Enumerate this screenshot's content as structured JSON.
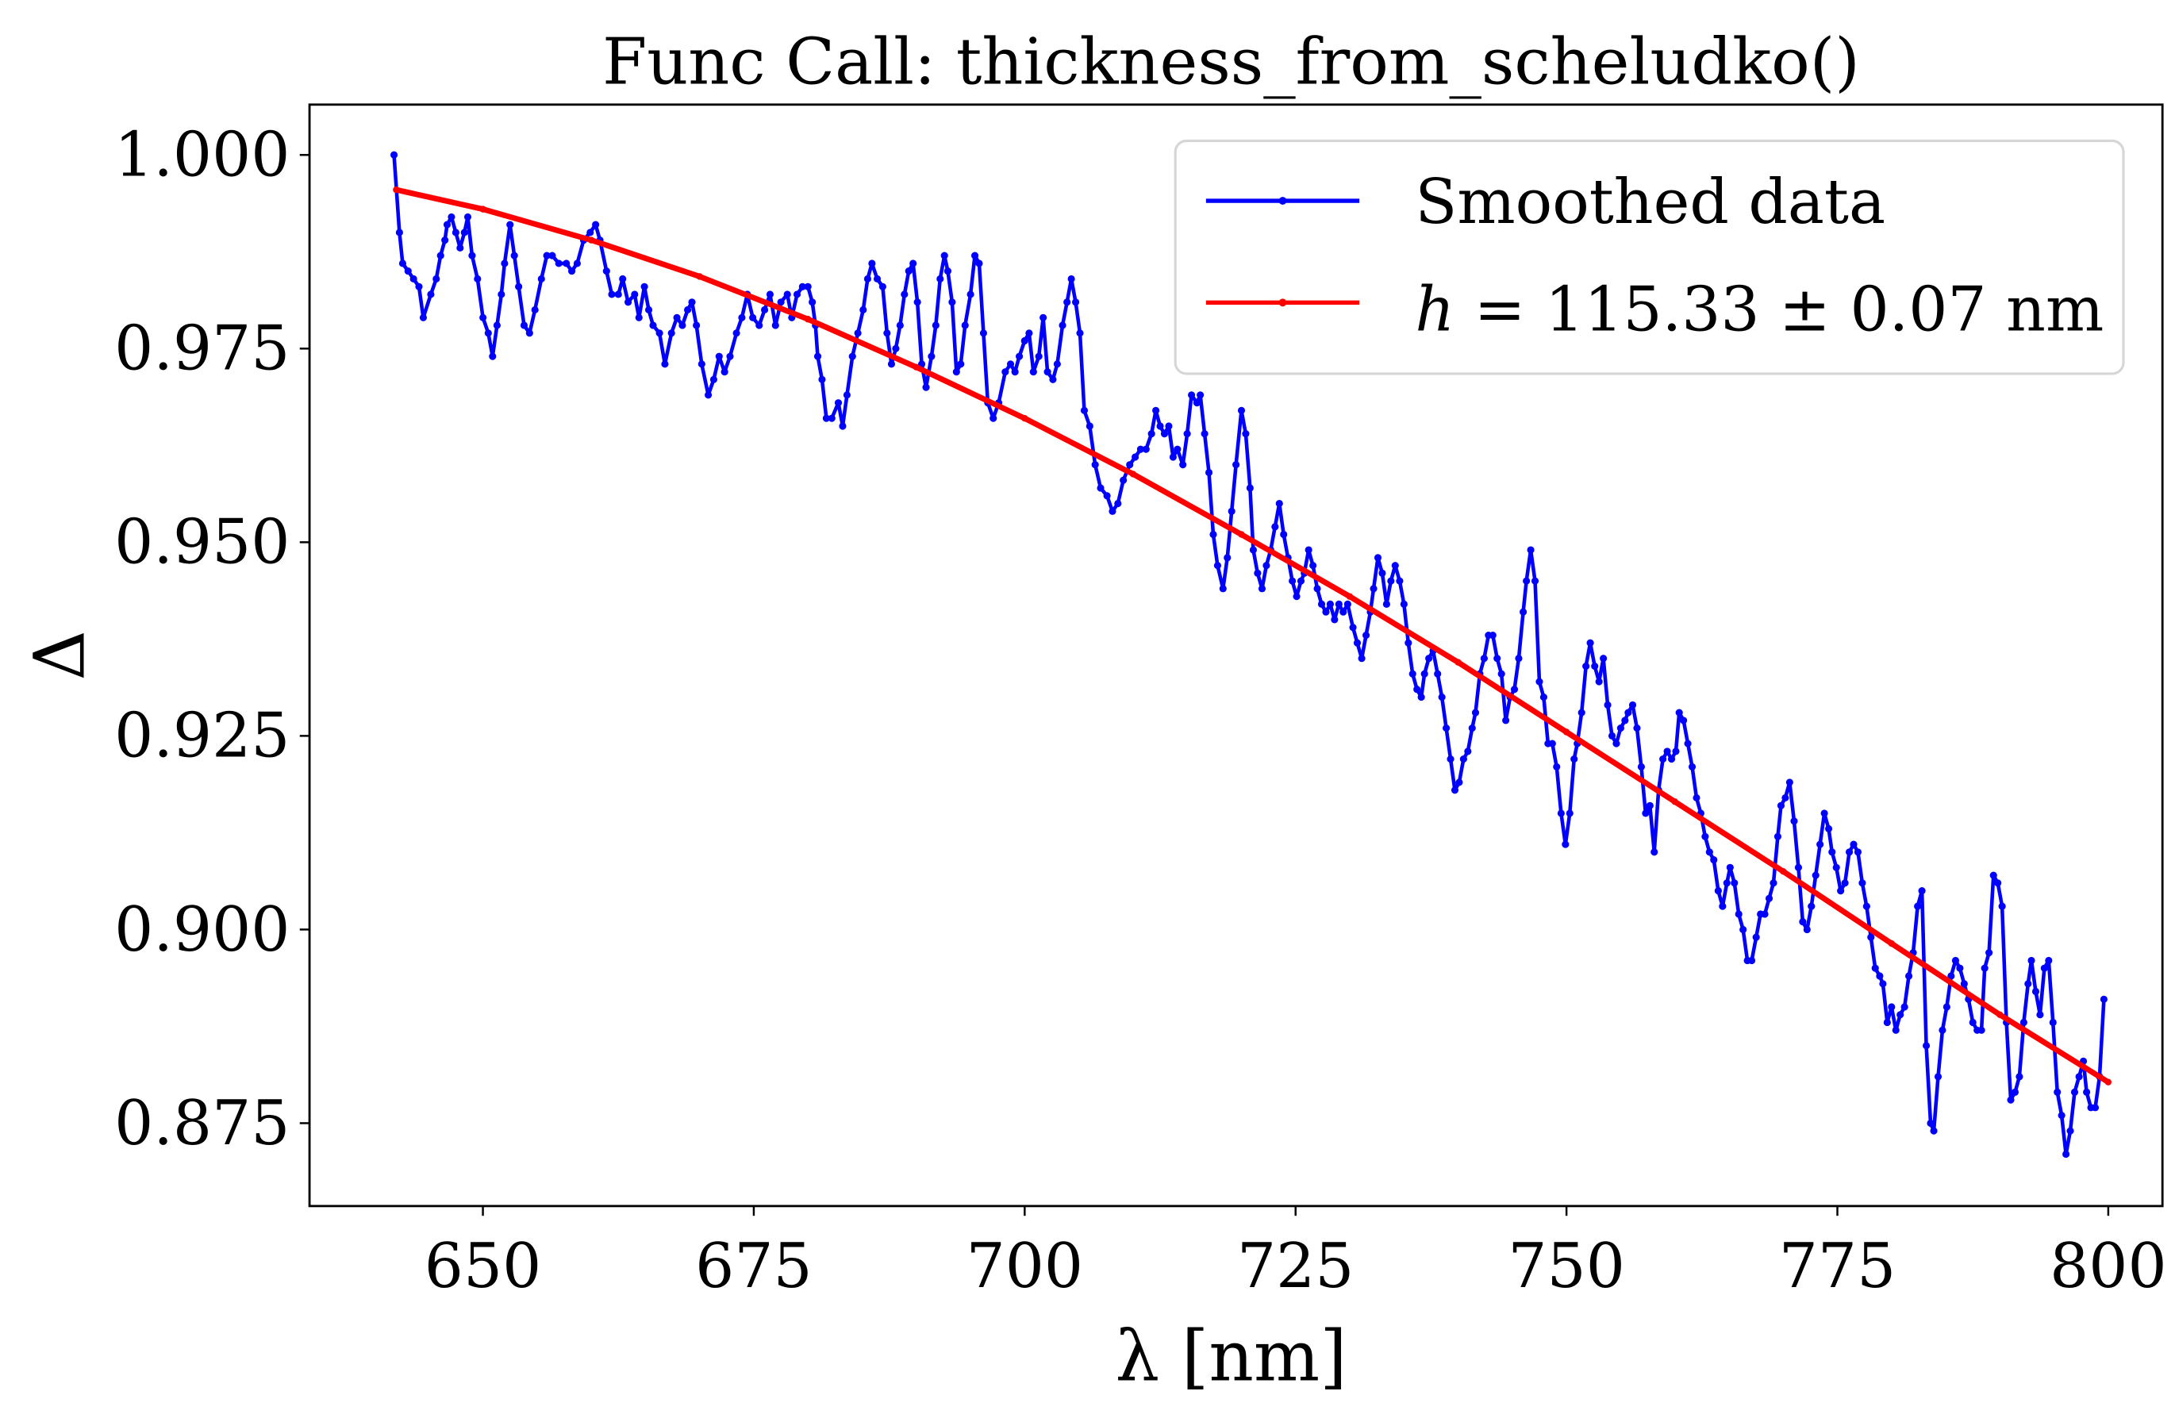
{
  "chart_data": {
    "type": "line",
    "title": "Func Call: thickness_from_scheludko()",
    "xlabel": "λ [nm]",
    "ylabel": "Δ",
    "xlim": [
      634,
      805
    ],
    "ylim": [
      0.8643,
      1.0065
    ],
    "xticks": [
      650,
      675,
      700,
      725,
      750,
      775,
      800
    ],
    "xtick_labels": [
      "650",
      "675",
      "700",
      "725",
      "750",
      "775",
      "800"
    ],
    "yticks": [
      0.875,
      0.9,
      0.925,
      0.95,
      0.975,
      1.0
    ],
    "ytick_labels": [
      "0.875",
      "0.900",
      "0.925",
      "0.950",
      "0.975",
      "1.000"
    ],
    "grid": false,
    "legend_position": "top-right",
    "series": [
      {
        "name": "Smoothed data",
        "color": "#0000ff",
        "marker": "dot",
        "x": [
          641.8,
          642.3,
          642.6,
          643.1,
          643.6,
          644.1,
          644.5,
          645.2,
          645.7,
          646.1,
          646.5,
          646.7,
          647.1,
          647.5,
          647.9,
          648.3,
          648.6,
          649.0,
          649.5,
          650.0,
          650.5,
          650.9,
          651.3,
          651.7,
          652.0,
          652.5,
          652.9,
          653.3,
          653.8,
          654.3,
          654.8,
          655.4,
          655.9,
          656.4,
          657.0,
          657.7,
          658.2,
          658.7,
          659.3,
          659.9,
          660.4,
          660.8,
          661.4,
          661.9,
          662.5,
          662.9,
          663.4,
          664.0,
          664.4,
          664.9,
          665.3,
          665.7,
          666.3,
          666.8,
          667.4,
          667.9,
          668.4,
          668.9,
          669.3,
          669.7,
          670.2,
          670.8,
          671.3,
          671.8,
          672.3,
          672.8,
          673.4,
          673.9,
          674.4,
          674.9,
          675.5,
          676.0,
          676.5,
          677.0,
          677.5,
          678.1,
          678.5,
          679.0,
          679.5,
          680.0,
          680.4,
          680.7,
          680.9,
          681.3,
          681.7,
          682.2,
          682.8,
          683.2,
          683.6,
          684.1,
          684.6,
          685.1,
          685.5,
          685.9,
          686.4,
          686.9,
          687.3,
          687.7,
          688.1,
          688.5,
          688.9,
          689.3,
          689.7,
          690.1,
          690.5,
          690.9,
          691.4,
          691.8,
          692.2,
          692.6,
          692.9,
          693.3,
          693.7,
          694.1,
          694.5,
          695.0,
          695.4,
          695.8,
          696.2,
          696.6,
          697.1,
          697.6,
          698.2,
          698.7,
          699.1,
          699.5,
          700.0,
          700.4,
          700.8,
          701.3,
          701.7,
          702.1,
          702.6,
          703.0,
          703.5,
          703.9,
          704.3,
          704.7,
          705.1,
          705.5,
          706.0,
          706.5,
          707.0,
          707.6,
          708.1,
          708.6,
          709.1,
          709.7,
          710.2,
          710.7,
          711.2,
          711.7,
          712.1,
          712.5,
          712.9,
          713.3,
          713.7,
          714.1,
          714.6,
          715.0,
          715.4,
          715.9,
          716.2,
          716.6,
          717.0,
          717.4,
          717.8,
          718.3,
          718.7,
          719.1,
          719.5,
          720.0,
          720.4,
          720.8,
          721.1,
          721.5,
          721.9,
          722.3,
          722.7,
          723.1,
          723.5,
          723.9,
          724.3,
          724.7,
          725.1,
          725.5,
          725.8,
          726.2,
          726.6,
          727.0,
          727.4,
          727.8,
          728.2,
          728.6,
          729.0,
          729.4,
          729.8,
          730.3,
          730.7,
          731.1,
          731.5,
          731.9,
          732.2,
          732.6,
          733.0,
          733.4,
          733.8,
          734.2,
          734.6,
          735.0,
          735.4,
          735.8,
          736.2,
          736.6,
          736.9,
          737.3,
          737.7,
          738.1,
          738.5,
          738.9,
          739.3,
          739.7,
          740.1,
          740.5,
          740.9,
          741.3,
          741.6,
          742.0,
          742.4,
          742.8,
          743.2,
          743.6,
          744.0,
          744.4,
          744.8,
          745.2,
          745.6,
          746.0,
          746.3,
          746.7,
          747.1,
          747.5,
          747.9,
          748.3,
          748.7,
          749.1,
          749.5,
          749.9,
          750.3,
          750.7,
          751.0,
          751.4,
          751.8,
          752.2,
          752.6,
          753.0,
          753.4,
          753.8,
          754.2,
          754.6,
          755.0,
          755.4,
          755.7,
          756.1,
          756.5,
          756.9,
          757.3,
          757.7,
          758.1,
          758.5,
          758.9,
          759.3,
          759.7,
          760.1,
          760.4,
          760.8,
          761.2,
          761.6,
          762.0,
          762.4,
          762.8,
          763.2,
          763.6,
          764.0,
          764.4,
          764.8,
          765.1,
          765.5,
          765.9,
          766.3,
          766.7,
          767.1,
          767.5,
          767.9,
          768.3,
          768.7,
          769.1,
          769.5,
          769.8,
          770.2,
          770.6,
          771.0,
          771.4,
          771.8,
          772.2,
          772.6,
          773.0,
          773.4,
          773.8,
          774.2,
          774.5,
          774.9,
          775.3,
          775.7,
          776.1,
          776.5,
          776.9,
          777.3,
          777.7,
          778.1,
          778.5,
          778.9,
          779.2,
          779.6,
          780.0,
          780.4,
          780.8,
          781.2,
          781.6,
          782.0,
          782.4,
          782.8,
          783.2,
          783.6,
          783.9,
          784.3,
          784.7,
          785.1,
          785.5,
          785.9,
          786.3,
          786.7,
          787.1,
          787.5,
          787.9,
          788.3,
          788.6,
          789.0,
          789.4,
          789.8,
          790.2,
          790.6,
          791.0,
          791.4,
          791.8,
          792.2,
          792.6,
          792.9,
          793.3,
          793.7,
          794.1,
          794.5,
          794.9,
          795.3,
          795.7,
          796.1,
          796.5,
          796.9,
          797.3,
          797.7,
          798.0,
          798.4,
          798.8,
          799.2,
          799.6
        ],
        "y": [
          1.0,
          0.99,
          0.986,
          0.985,
          0.984,
          0.983,
          0.979,
          0.982,
          0.984,
          0.987,
          0.989,
          0.991,
          0.992,
          0.99,
          0.988,
          0.99,
          0.992,
          0.987,
          0.984,
          0.979,
          0.977,
          0.974,
          0.978,
          0.982,
          0.986,
          0.991,
          0.987,
          0.983,
          0.978,
          0.977,
          0.98,
          0.984,
          0.987,
          0.987,
          0.986,
          0.986,
          0.985,
          0.986,
          0.989,
          0.99,
          0.991,
          0.989,
          0.985,
          0.982,
          0.982,
          0.984,
          0.981,
          0.982,
          0.979,
          0.983,
          0.98,
          0.978,
          0.977,
          0.973,
          0.977,
          0.979,
          0.978,
          0.98,
          0.981,
          0.978,
          0.973,
          0.969,
          0.971,
          0.974,
          0.972,
          0.974,
          0.977,
          0.979,
          0.982,
          0.979,
          0.978,
          0.98,
          0.982,
          0.978,
          0.981,
          0.982,
          0.979,
          0.982,
          0.983,
          0.983,
          0.981,
          0.978,
          0.974,
          0.971,
          0.966,
          0.966,
          0.968,
          0.965,
          0.969,
          0.974,
          0.977,
          0.98,
          0.984,
          0.986,
          0.984,
          0.983,
          0.977,
          0.973,
          0.975,
          0.978,
          0.982,
          0.985,
          0.986,
          0.981,
          0.973,
          0.97,
          0.974,
          0.978,
          0.984,
          0.987,
          0.985,
          0.981,
          0.972,
          0.973,
          0.978,
          0.982,
          0.987,
          0.986,
          0.977,
          0.968,
          0.966,
          0.968,
          0.972,
          0.973,
          0.972,
          0.974,
          0.976,
          0.977,
          0.972,
          0.974,
          0.979,
          0.972,
          0.971,
          0.973,
          0.978,
          0.981,
          0.984,
          0.981,
          0.977,
          0.967,
          0.965,
          0.96,
          0.957,
          0.956,
          0.954,
          0.955,
          0.958,
          0.96,
          0.961,
          0.962,
          0.962,
          0.964,
          0.967,
          0.965,
          0.964,
          0.965,
          0.961,
          0.962,
          0.96,
          0.964,
          0.969,
          0.968,
          0.969,
          0.964,
          0.959,
          0.951,
          0.947,
          0.944,
          0.948,
          0.954,
          0.96,
          0.967,
          0.964,
          0.957,
          0.949,
          0.946,
          0.944,
          0.947,
          0.949,
          0.952,
          0.955,
          0.951,
          0.948,
          0.945,
          0.943,
          0.945,
          0.946,
          0.949,
          0.947,
          0.944,
          0.942,
          0.941,
          0.942,
          0.94,
          0.942,
          0.941,
          0.942,
          0.939,
          0.937,
          0.935,
          0.938,
          0.941,
          0.944,
          0.948,
          0.946,
          0.942,
          0.945,
          0.947,
          0.945,
          0.942,
          0.937,
          0.933,
          0.931,
          0.93,
          0.933,
          0.935,
          0.936,
          0.933,
          0.93,
          0.926,
          0.922,
          0.918,
          0.919,
          0.922,
          0.923,
          0.926,
          0.928,
          0.933,
          0.935,
          0.938,
          0.938,
          0.935,
          0.933,
          0.927,
          0.93,
          0.931,
          0.935,
          0.941,
          0.945,
          0.949,
          0.945,
          0.932,
          0.93,
          0.924,
          0.924,
          0.921,
          0.915,
          0.911,
          0.915,
          0.922,
          0.924,
          0.928,
          0.934,
          0.937,
          0.934,
          0.932,
          0.935,
          0.929,
          0.925,
          0.924,
          0.926,
          0.927,
          0.928,
          0.929,
          0.926,
          0.921,
          0.915,
          0.916,
          0.91,
          0.918,
          0.922,
          0.923,
          0.922,
          0.923,
          0.928,
          0.927,
          0.924,
          0.921,
          0.917,
          0.915,
          0.912,
          0.91,
          0.909,
          0.905,
          0.903,
          0.906,
          0.908,
          0.906,
          0.902,
          0.9,
          0.896,
          0.896,
          0.899,
          0.902,
          0.902,
          0.904,
          0.906,
          0.912,
          0.916,
          0.917,
          0.919,
          0.914,
          0.908,
          0.901,
          0.9,
          0.903,
          0.907,
          0.911,
          0.915,
          0.913,
          0.91,
          0.908,
          0.905,
          0.906,
          0.91,
          0.911,
          0.91,
          0.906,
          0.903,
          0.899,
          0.895,
          0.894,
          0.893,
          0.888,
          0.89,
          0.887,
          0.889,
          0.89,
          0.894,
          0.897,
          0.903,
          0.905,
          0.885,
          0.875,
          0.874,
          0.881,
          0.887,
          0.89,
          0.894,
          0.896,
          0.895,
          0.893,
          0.891,
          0.888,
          0.887,
          0.887,
          0.895,
          0.897,
          0.907,
          0.906,
          0.903,
          0.888,
          0.878,
          0.879,
          0.881,
          0.888,
          0.893,
          0.896,
          0.892,
          0.889,
          0.895,
          0.896,
          0.888,
          0.879,
          0.876,
          0.871,
          0.874,
          0.879,
          0.881,
          0.883,
          0.879,
          0.877,
          0.877,
          0.881,
          0.891
        ]
      },
      {
        "name": "h = 115.33 ± 0.07 nm",
        "color": "#ff0000",
        "marker": "dot",
        "x": [
          642,
          650,
          660,
          670,
          680,
          690,
          700,
          710,
          720,
          730,
          740,
          750,
          760,
          770,
          780,
          790,
          800
        ],
        "y": [
          0.9955,
          0.993,
          0.989,
          0.9843,
          0.9788,
          0.9726,
          0.966,
          0.9588,
          0.951,
          0.943,
          0.9345,
          0.9255,
          0.9165,
          0.9075,
          0.8982,
          0.889,
          0.8803
        ]
      }
    ],
    "legend": {
      "entries": [
        "Smoothed data",
        "h = 115.33 ± 0.07 nm"
      ],
      "fit_label": {
        "symbol": "h",
        "text": " = 115.33 ± 0.07 nm"
      }
    }
  }
}
